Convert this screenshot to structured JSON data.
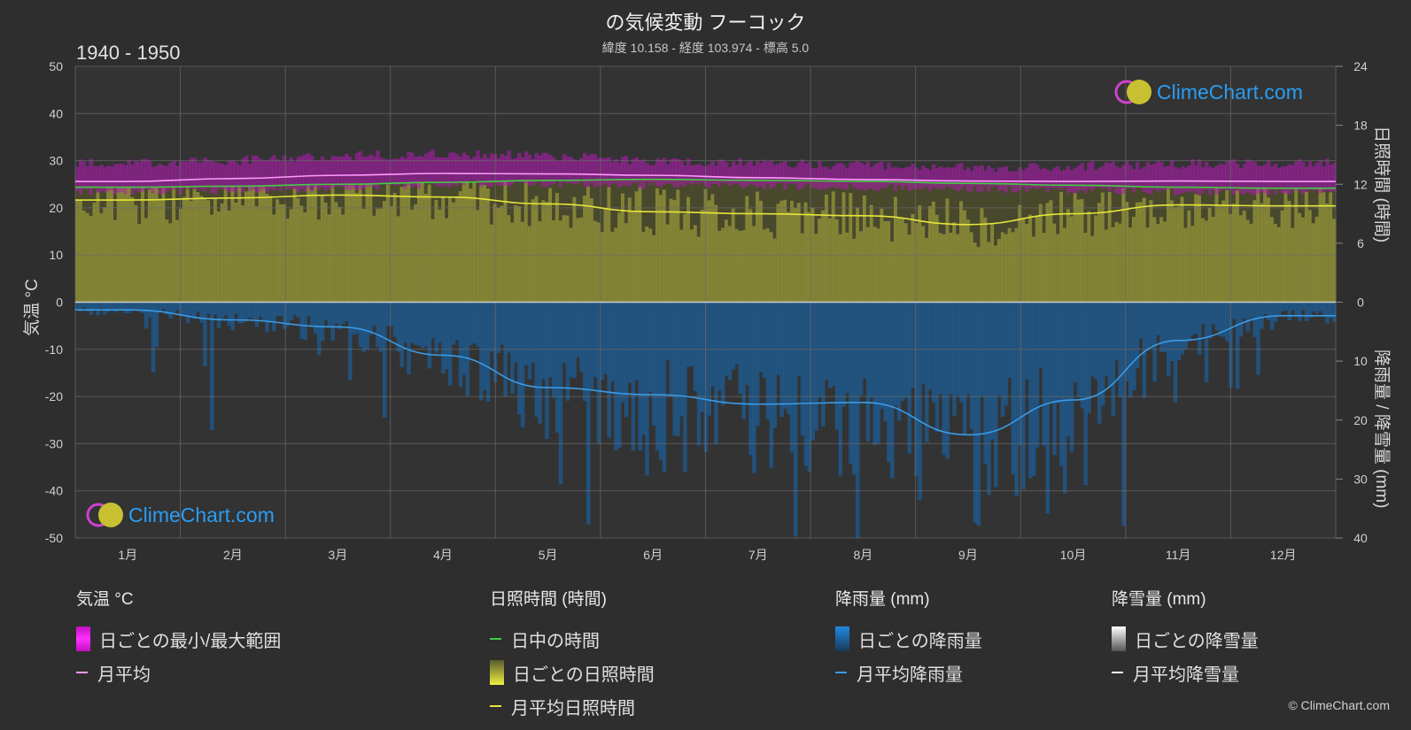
{
  "title": "の気候変動 フーコック",
  "subtitle": "緯度 10.158 - 経度 103.974 - 標高 5.0",
  "period": "1940 - 1950",
  "watermark": "ClimeChart.com",
  "copyright": "© ClimeChart.com",
  "chart_data": {
    "type": "line",
    "x_categories": [
      "1月",
      "2月",
      "3月",
      "4月",
      "5月",
      "6月",
      "7月",
      "8月",
      "9月",
      "10月",
      "11月",
      "12月"
    ],
    "left_axis": {
      "label": "気温 °C",
      "range": [
        -50,
        50
      ],
      "ticks": [
        "50",
        "40",
        "30",
        "20",
        "10",
        "0",
        "-10",
        "-20",
        "-30",
        "-40",
        "-50"
      ]
    },
    "right_axis_top": {
      "label": "日照時間 (時間)",
      "range": [
        0,
        24
      ],
      "ticks": [
        "24",
        "18",
        "12",
        "6",
        "0"
      ]
    },
    "right_axis_bottom": {
      "label": "降雨量 / 降雪量 (mm)",
      "range": [
        0,
        40
      ],
      "ticks": [
        "0",
        "10",
        "20",
        "30",
        "40"
      ]
    },
    "grid": true,
    "series": [
      {
        "name": "日ごとの最小/最大範囲",
        "unit": "°C",
        "color": "#e012e0",
        "min": [
          23.5,
          23.6,
          24.3,
          25.0,
          25.0,
          24.8,
          24.6,
          24.4,
          24.0,
          23.8,
          23.4,
          23.3
        ],
        "max": [
          29.5,
          30.0,
          31.0,
          31.5,
          31.0,
          30.0,
          29.5,
          29.0,
          28.5,
          28.8,
          29.3,
          29.5
        ]
      },
      {
        "name": "月平均",
        "unit": "°C",
        "color": "#ff99ff",
        "values": [
          25.6,
          26.2,
          26.9,
          27.3,
          27.2,
          26.9,
          26.4,
          26.0,
          25.7,
          25.6,
          25.7,
          25.6
        ]
      },
      {
        "name": "日中の時間",
        "unit": "時間",
        "color": "#44cc44",
        "values": [
          11.7,
          11.8,
          12.0,
          12.2,
          12.4,
          12.5,
          12.4,
          12.3,
          12.1,
          11.9,
          11.7,
          11.6
        ]
      },
      {
        "name": "日ごとの日照時間",
        "unit": "時間",
        "color": "#c8c83c",
        "values": [
          10.4,
          10.6,
          10.9,
          10.7,
          10.0,
          9.2,
          9.0,
          8.8,
          7.9,
          9.0,
          9.9,
          9.8
        ]
      },
      {
        "name": "月平均日照時間",
        "unit": "時間",
        "color": "#e6e63a",
        "values": [
          10.4,
          10.6,
          10.9,
          10.7,
          10.0,
          9.2,
          9.0,
          8.8,
          7.9,
          9.0,
          9.9,
          9.8
        ]
      },
      {
        "name": "日ごとの降雨量",
        "unit": "mm",
        "color": "#1e7ac8",
        "values": [
          1.3,
          3.0,
          4.2,
          9.0,
          14.5,
          15.7,
          17.3,
          17.0,
          22.5,
          16.6,
          6.5,
          2.3
        ]
      },
      {
        "name": "月平均降雨量",
        "unit": "mm",
        "color": "#3a9be6",
        "values": [
          1.3,
          3.0,
          4.2,
          9.0,
          14.5,
          15.7,
          17.3,
          17.0,
          22.5,
          16.6,
          6.5,
          2.3
        ]
      },
      {
        "name": "日ごとの降雪量",
        "unit": "mm",
        "color": "#ffffff",
        "values": [
          0,
          0,
          0,
          0,
          0,
          0,
          0,
          0,
          0,
          0,
          0,
          0
        ]
      },
      {
        "name": "月平均降雪量",
        "unit": "mm",
        "color": "#ffffff",
        "values": [
          0,
          0,
          0,
          0,
          0,
          0,
          0,
          0,
          0,
          0,
          0,
          0
        ]
      }
    ]
  },
  "legend": {
    "temperature": {
      "title": "気温 °C",
      "items": [
        "日ごとの最小/最大範囲",
        "月平均"
      ]
    },
    "sunshine": {
      "title": "日照時間 (時間)",
      "items": [
        "日中の時間",
        "日ごとの日照時間",
        "月平均日照時間"
      ]
    },
    "rain": {
      "title": "降雨量 (mm)",
      "items": [
        "日ごとの降雨量",
        "月平均降雨量"
      ]
    },
    "snow": {
      "title": "降雪量 (mm)",
      "items": [
        "日ごとの降雪量",
        "月平均降雪量"
      ]
    }
  }
}
